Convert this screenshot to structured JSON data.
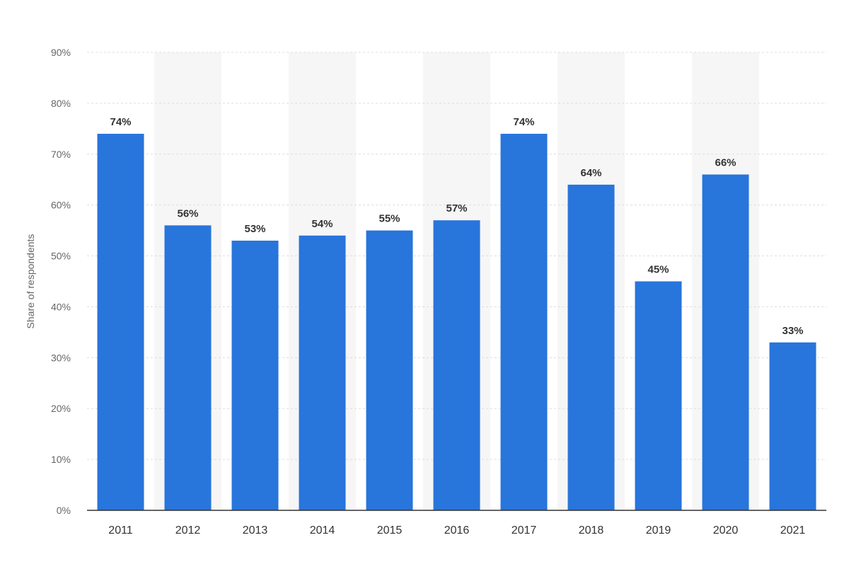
{
  "chart_data": {
    "type": "bar",
    "categories": [
      "2011",
      "2012",
      "2013",
      "2014",
      "2015",
      "2016",
      "2017",
      "2018",
      "2019",
      "2020",
      "2021"
    ],
    "values": [
      74,
      56,
      53,
      54,
      55,
      57,
      74,
      64,
      45,
      66,
      33
    ],
    "value_labels": [
      "74%",
      "56%",
      "53%",
      "54%",
      "55%",
      "57%",
      "74%",
      "64%",
      "45%",
      "66%",
      "33%"
    ],
    "ylabel": "Share of respondents",
    "xlabel": "",
    "ylim": [
      0,
      90
    ],
    "y_ticks": [
      0,
      10,
      20,
      30,
      40,
      50,
      60,
      70,
      80,
      90
    ],
    "y_tick_labels": [
      "0%",
      "10%",
      "20%",
      "30%",
      "40%",
      "50%",
      "60%",
      "70%",
      "80%",
      "90%"
    ],
    "grid": true,
    "colors": {
      "bar": "#2875dc",
      "grid": "#dddddd",
      "band": "#f6f6f6",
      "axis": "#333333"
    }
  }
}
